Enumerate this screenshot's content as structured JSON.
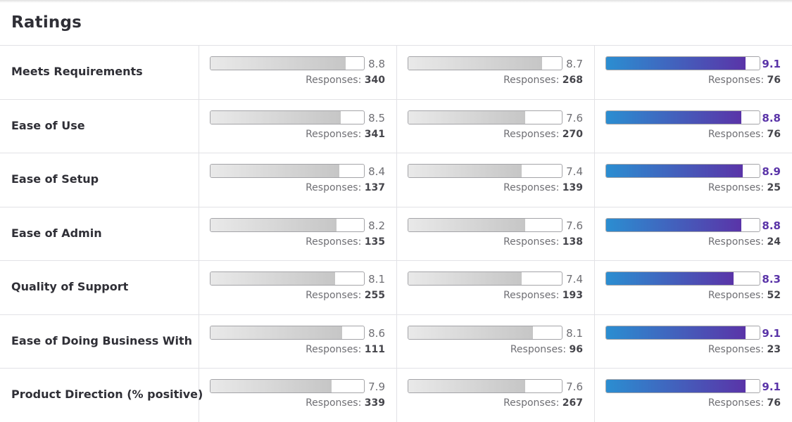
{
  "title": "Ratings",
  "responses_label": "Responses:",
  "colors": {
    "brand_start": "#2b8ed1",
    "brand_end": "#5a34a8",
    "neutral_fill": "#c6c6c6"
  },
  "score_max": 10,
  "rows": [
    {
      "label": "Meets Requirements",
      "cells": [
        {
          "score": "8.8",
          "responses": "340"
        },
        {
          "score": "8.7",
          "responses": "268"
        },
        {
          "score": "9.1",
          "responses": "76"
        }
      ]
    },
    {
      "label": "Ease of Use",
      "cells": [
        {
          "score": "8.5",
          "responses": "341"
        },
        {
          "score": "7.6",
          "responses": "270"
        },
        {
          "score": "8.8",
          "responses": "76"
        }
      ]
    },
    {
      "label": "Ease of Setup",
      "cells": [
        {
          "score": "8.4",
          "responses": "137"
        },
        {
          "score": "7.4",
          "responses": "139"
        },
        {
          "score": "8.9",
          "responses": "25"
        }
      ]
    },
    {
      "label": "Ease of Admin",
      "cells": [
        {
          "score": "8.2",
          "responses": "135"
        },
        {
          "score": "7.6",
          "responses": "138"
        },
        {
          "score": "8.8",
          "responses": "24"
        }
      ]
    },
    {
      "label": "Quality of Support",
      "cells": [
        {
          "score": "8.1",
          "responses": "255"
        },
        {
          "score": "7.4",
          "responses": "193"
        },
        {
          "score": "8.3",
          "responses": "52"
        }
      ]
    },
    {
      "label": "Ease of Doing Business With",
      "cells": [
        {
          "score": "8.6",
          "responses": "111"
        },
        {
          "score": "8.1",
          "responses": "96"
        },
        {
          "score": "9.1",
          "responses": "23"
        }
      ]
    },
    {
      "label": "Product Direction (% positive)",
      "cells": [
        {
          "score": "7.9",
          "responses": "339"
        },
        {
          "score": "7.6",
          "responses": "267"
        },
        {
          "score": "9.1",
          "responses": "76"
        }
      ]
    }
  ]
}
